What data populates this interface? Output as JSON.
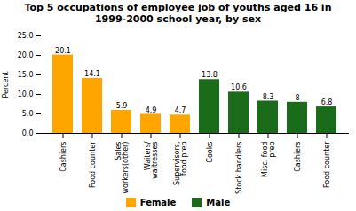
{
  "chart_data": {
    "type": "bar",
    "title": "Top 5 occupations of employee job of youths aged 16 in\n1999-2000 school year, by sex",
    "ylabel": "Percent",
    "categories": [
      "Cashiers",
      "Food counter",
      "Sales\nworkers(other)",
      "Waiters/\nwaitresses",
      "Supervisors,\nfood prep",
      "Cooks",
      "Stock handlers",
      "Misc. food\nprep",
      "Cashiers",
      "Food counter"
    ],
    "series": [
      {
        "name": "Female",
        "color": "#FFA500",
        "values": [
          20.1,
          14.1,
          5.9,
          4.9,
          4.7,
          null,
          null,
          null,
          null,
          null
        ]
      },
      {
        "name": "Male",
        "color": "#1A6B1A",
        "values": [
          null,
          null,
          null,
          null,
          null,
          13.8,
          10.6,
          8.3,
          8.0,
          6.8
        ]
      }
    ],
    "ylim": [
      0,
      25.0
    ],
    "yticks": [
      {
        "value": 0,
        "label": "0.0"
      },
      {
        "value": 5,
        "label": "5.0"
      },
      {
        "value": 10,
        "label": "10.0"
      },
      {
        "value": 15,
        "label": "15.0"
      },
      {
        "value": 20,
        "label": "20.0"
      },
      {
        "value": 25,
        "label": "25.0"
      }
    ],
    "data_labels": true,
    "grid": false,
    "legend": "bottom"
  }
}
